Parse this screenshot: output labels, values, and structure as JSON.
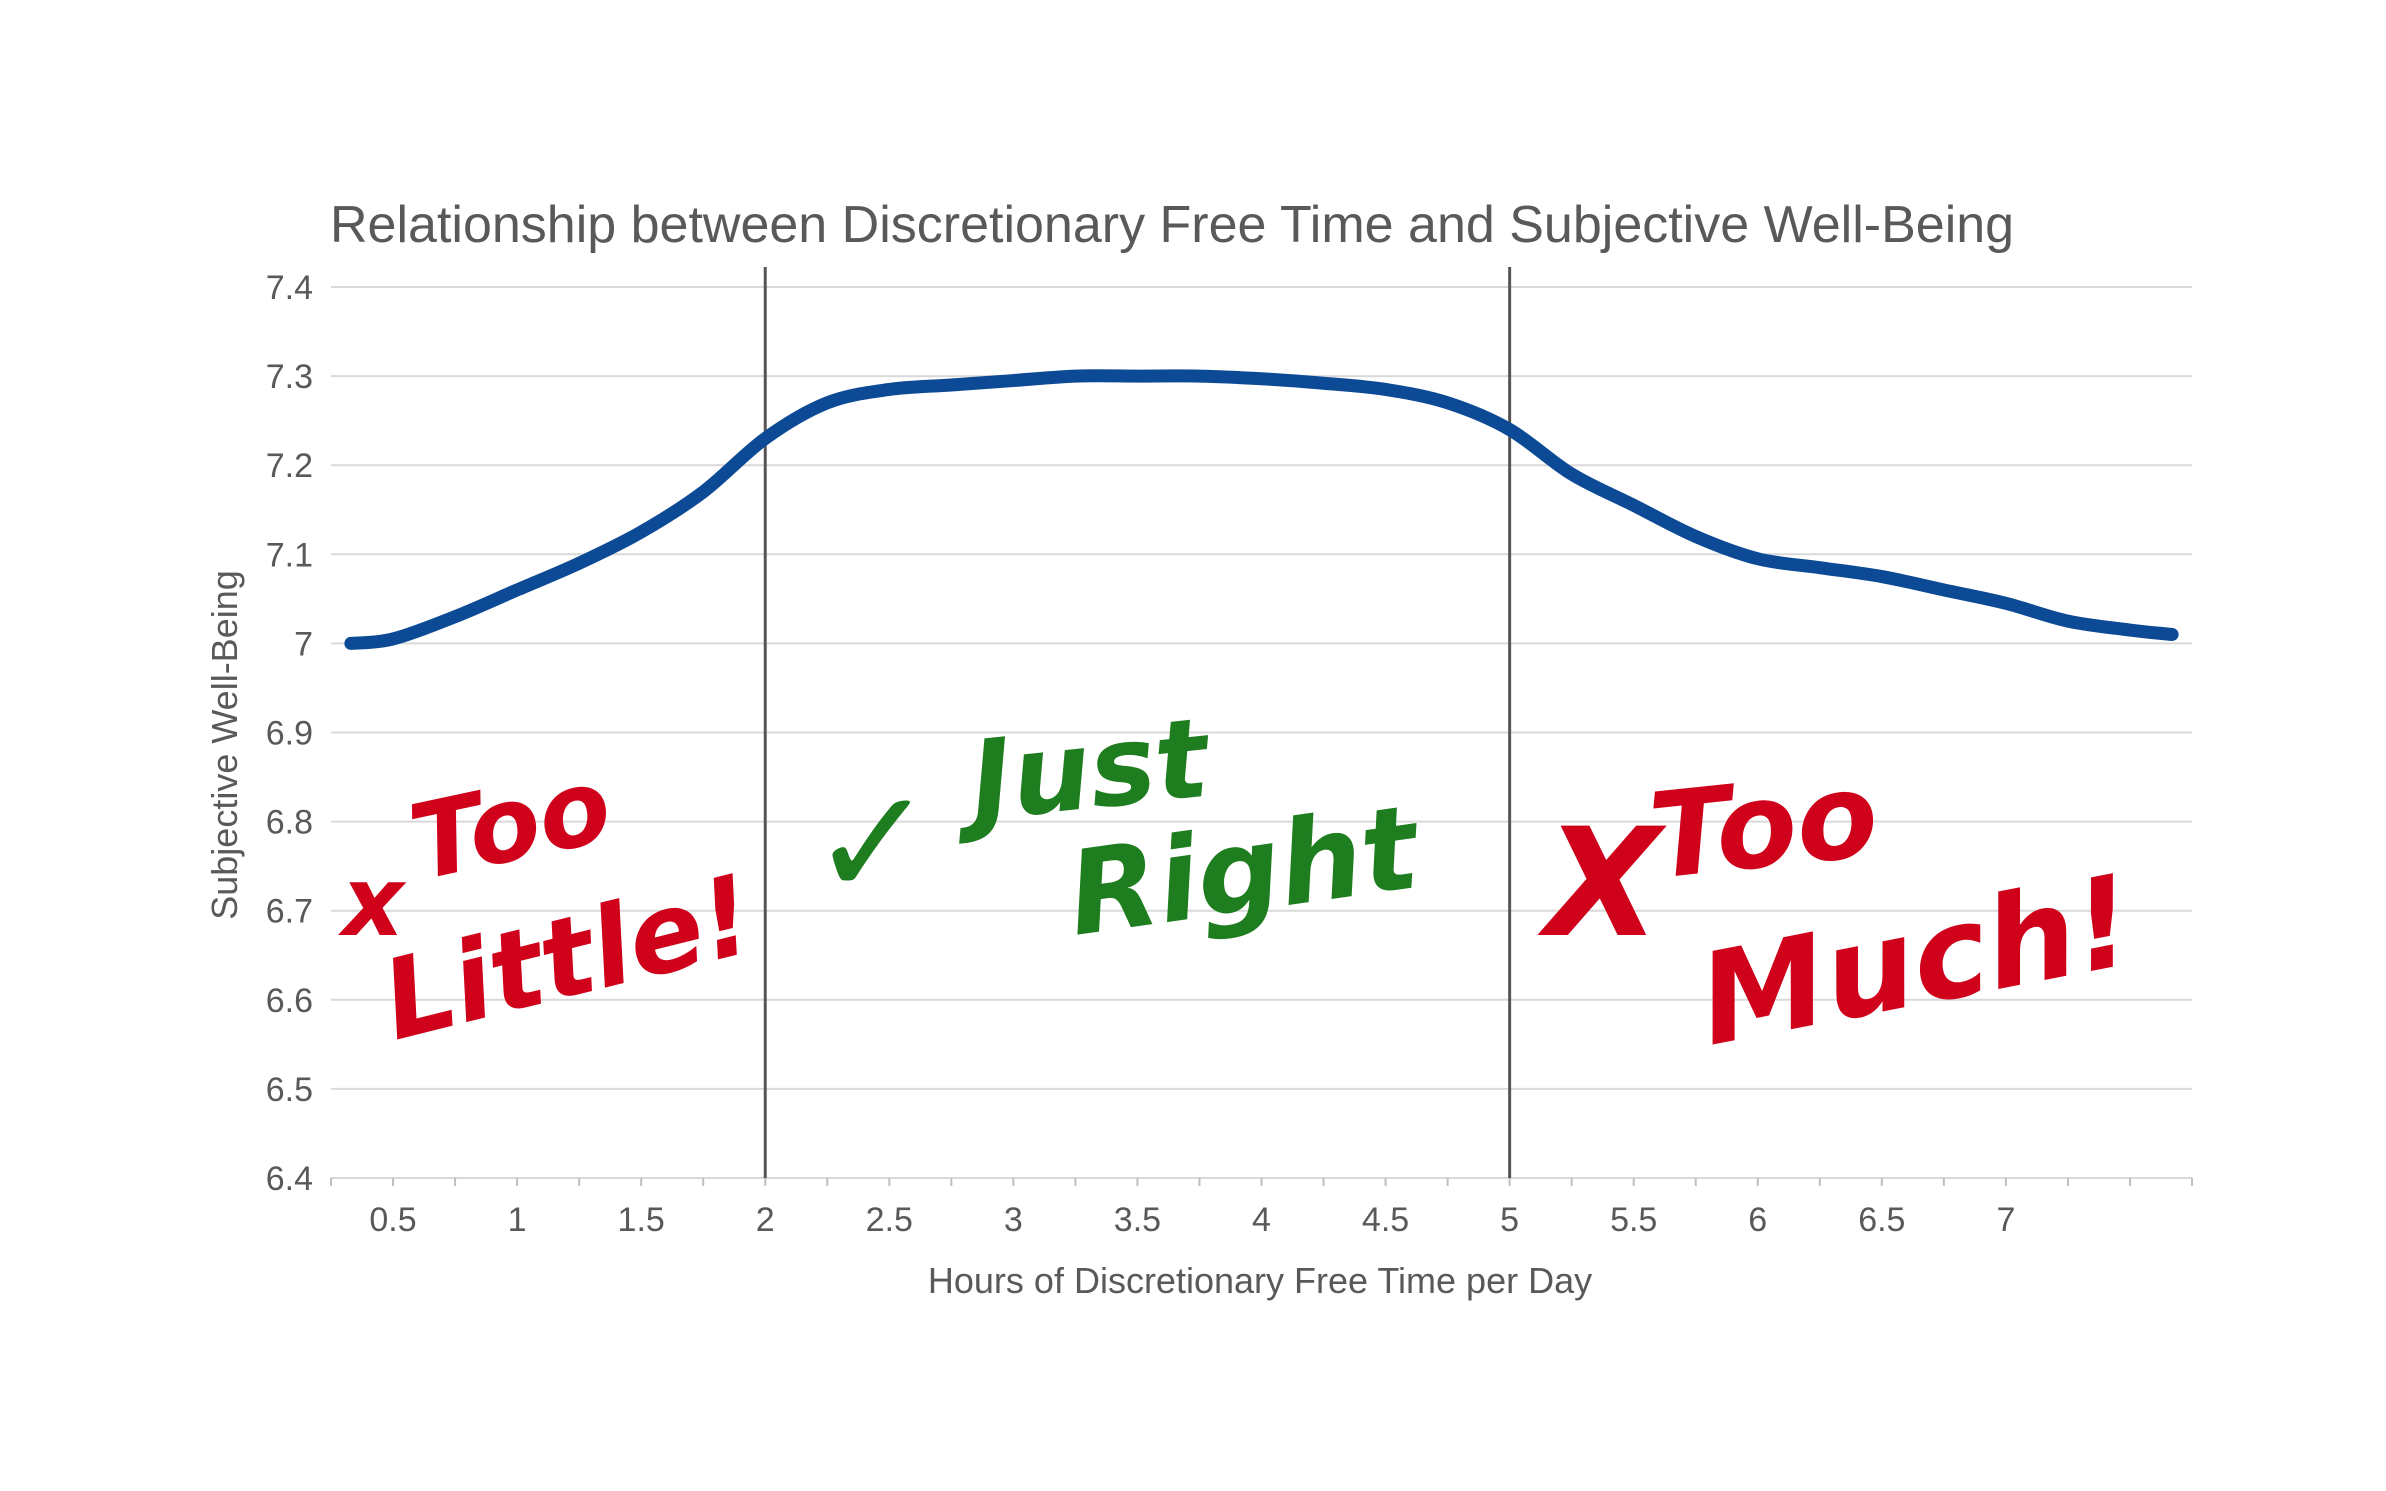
{
  "chart_data": {
    "type": "line",
    "title": "Relationship between Discretionary Free Time and Subjective Well-Being",
    "xlabel": "Hours of Discretionary Free Time per Day",
    "ylabel": "Subjective Well-Being",
    "xlim": [
      0.25,
      7.75
    ],
    "ylim": [
      6.4,
      7.4
    ],
    "grid": true,
    "x_ticks": [
      "0.5",
      "1",
      "1.5",
      "2",
      "2.5",
      "3",
      "3.5",
      "4",
      "4.5",
      "5",
      "5.5",
      "6",
      "6.5",
      "7"
    ],
    "x_tick_values": [
      0.5,
      1,
      1.5,
      2,
      2.5,
      3,
      3.5,
      4,
      4.5,
      5,
      5.5,
      6,
      6.5,
      7
    ],
    "y_ticks": [
      "6.4",
      "6.5",
      "6.6",
      "6.7",
      "6.8",
      "6.9",
      "7",
      "7.1",
      "7.2",
      "7.3",
      "7.4"
    ],
    "y_tick_values": [
      6.4,
      6.5,
      6.6,
      6.7,
      6.8,
      6.9,
      7,
      7.1,
      7.2,
      7.3,
      7.4
    ],
    "line_color": "#0d4a96",
    "series": [
      {
        "x": [
          0.33,
          0.5,
          0.75,
          1,
          1.25,
          1.5,
          1.75,
          2,
          2.25,
          2.5,
          2.75,
          3,
          3.25,
          3.5,
          3.75,
          4,
          4.25,
          4.5,
          4.75,
          5,
          5.25,
          5.5,
          5.75,
          6,
          6.25,
          6.5,
          6.75,
          7,
          7.25,
          7.5,
          7.67
        ],
        "values": [
          7.0,
          7.005,
          7.03,
          7.06,
          7.09,
          7.125,
          7.17,
          7.23,
          7.27,
          7.285,
          7.29,
          7.295,
          7.3,
          7.3,
          7.3,
          7.297,
          7.292,
          7.285,
          7.27,
          7.24,
          7.19,
          7.155,
          7.12,
          7.095,
          7.085,
          7.075,
          7.06,
          7.045,
          7.025,
          7.015,
          7.01
        ]
      }
    ],
    "reference_lines_x": [
      2,
      5
    ],
    "annotations": {
      "too_little": {
        "mark": "x",
        "line1": "Too",
        "line2": "Little!"
      },
      "just_right": {
        "mark": "✓",
        "line1": "Just",
        "line2": "Right"
      },
      "too_much": {
        "mark": "X",
        "line1": "Too",
        "line2": "Much!"
      }
    }
  }
}
